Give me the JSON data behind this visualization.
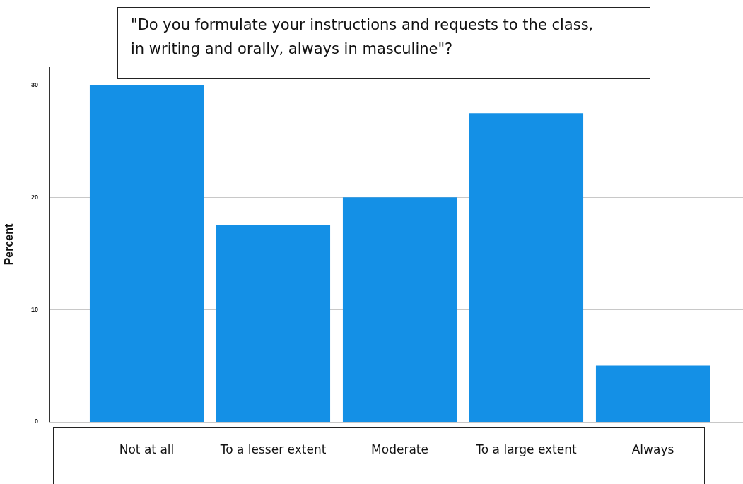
{
  "chart_data": {
    "type": "bar",
    "title": "\"Do you formulate your instructions and requests to the class, in writing and orally, always in masculine\"?",
    "ylabel": "Percent",
    "categories": [
      "Not at all",
      "To a lesser extent",
      "Moderate",
      "To a large extent",
      "Always"
    ],
    "values": [
      30,
      17.5,
      20,
      27.5,
      5
    ],
    "color": "#1490e6",
    "ylim": [
      0,
      31.6
    ],
    "yticks": [
      0,
      10,
      20,
      30
    ],
    "grid": "y",
    "legend": false
  }
}
